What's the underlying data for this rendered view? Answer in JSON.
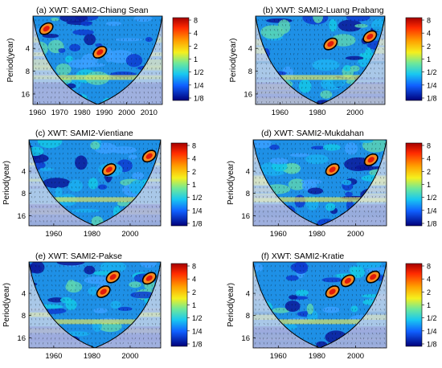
{
  "chart_data": [
    {
      "type": "heatmap",
      "title": "(a) XWT: SAMI2-Chiang Sean",
      "ylabel": "Period(year)",
      "xlim": [
        1958,
        2016
      ],
      "xticks": [
        1960,
        1970,
        1980,
        1990,
        2000,
        2010
      ],
      "yticks": [
        "4",
        "8",
        "16"
      ],
      "colorbar_ticks": [
        "8",
        "4",
        "2",
        "1",
        "1/2",
        "1/4",
        "1/8"
      ],
      "significant_regions": [
        {
          "x": 1964,
          "period": 2.2
        },
        {
          "x": 1988,
          "period": 4.5
        }
      ]
    },
    {
      "type": "heatmap",
      "title": "(b) XWT: SAMI2-Luang Prabang",
      "ylabel": "Period(year)",
      "xlim": [
        1947,
        2016
      ],
      "xticks": [
        1960,
        1980,
        2000
      ],
      "yticks": [
        "4",
        "8",
        "16"
      ],
      "colorbar_ticks": [
        "8",
        "4",
        "2",
        "1",
        "1/2",
        "1/4",
        "1/8"
      ],
      "significant_regions": [
        {
          "x": 1987,
          "period": 3.5
        },
        {
          "x": 2008,
          "period": 2.8
        }
      ]
    },
    {
      "type": "heatmap",
      "title": "(c) XWT: SAMI2-Vientiane",
      "ylabel": "Period(year)",
      "xlim": [
        1947,
        2016
      ],
      "xticks": [
        1960,
        1980,
        2000
      ],
      "yticks": [
        "4",
        "8",
        "16"
      ],
      "colorbar_ticks": [
        "8",
        "4",
        "2",
        "1",
        "1/2",
        "1/4",
        "1/8"
      ],
      "significant_regions": [
        {
          "x": 1989,
          "period": 3.8
        },
        {
          "x": 2010,
          "period": 2.5
        }
      ]
    },
    {
      "type": "heatmap",
      "title": "(d) XWT: SAMI2-Mukdahan",
      "ylabel": "Period(year)",
      "xlim": [
        1947,
        2016
      ],
      "xticks": [
        1960,
        1980,
        2000
      ],
      "yticks": [
        "4",
        "8",
        "16"
      ],
      "colorbar_ticks": [
        "8",
        "4",
        "2",
        "1",
        "1/2",
        "1/4",
        "1/8"
      ],
      "significant_regions": [
        {
          "x": 1988,
          "period": 3.8
        },
        {
          "x": 2008,
          "period": 2.8
        }
      ]
    },
    {
      "type": "heatmap",
      "title": "(e) XWT: SAMI2-Pakse",
      "ylabel": "Period(year)",
      "xlim": [
        1947,
        2016
      ],
      "xticks": [
        1960,
        1980,
        2000
      ],
      "yticks": [
        "4",
        "8",
        "16"
      ],
      "colorbar_ticks": [
        "8",
        "4",
        "2",
        "1",
        "1/2",
        "1/4",
        "1/8"
      ],
      "significant_regions": [
        {
          "x": 1986,
          "period": 3.8
        },
        {
          "x": 1991,
          "period": 2.4
        },
        {
          "x": 2010,
          "period": 2.5
        }
      ]
    },
    {
      "type": "heatmap",
      "title": "(f) XWT: SAMI2-Kratie",
      "ylabel": "Period(year)",
      "xlim": [
        1947,
        2016
      ],
      "xticks": [
        1960,
        1980,
        2000
      ],
      "yticks": [
        "4",
        "8",
        "16"
      ],
      "colorbar_ticks": [
        "8",
        "4",
        "2",
        "1",
        "1/2",
        "1/4",
        "1/8"
      ],
      "significant_regions": [
        {
          "x": 1988,
          "period": 3.8
        },
        {
          "x": 1996,
          "period": 2.7
        },
        {
          "x": 2009,
          "period": 2.4
        }
      ]
    }
  ]
}
